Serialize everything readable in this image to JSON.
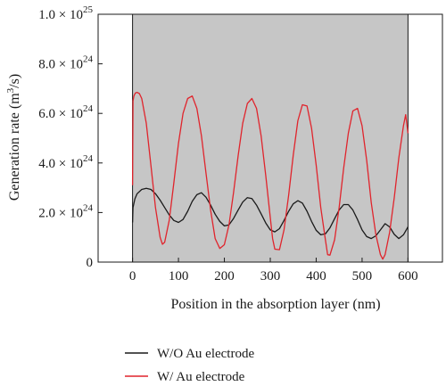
{
  "chart_data": {
    "type": "line",
    "xlabel": "Position in the absorption layer (nm)",
    "ylabel_prefix": "Generation rate (m",
    "ylabel_sup": "3",
    "ylabel_suffix": "/s)",
    "xlim": [
      -75,
      675
    ],
    "ylim": [
      0,
      1e+25
    ],
    "shaded_region": [
      0,
      600
    ],
    "x_ticks": [
      {
        "value": 0,
        "label": "0"
      },
      {
        "value": 100,
        "label": "100"
      },
      {
        "value": 200,
        "label": "200"
      },
      {
        "value": 300,
        "label": "300"
      },
      {
        "value": 400,
        "label": "400"
      },
      {
        "value": 500,
        "label": "500"
      },
      {
        "value": 600,
        "label": "600"
      }
    ],
    "y_ticks": [
      {
        "value": 0,
        "mantissa": "0",
        "exp": ""
      },
      {
        "value": 2e+24,
        "mantissa": "2.0 × 10",
        "exp": "24"
      },
      {
        "value": 4e+24,
        "mantissa": "4.0 × 10",
        "exp": "24"
      },
      {
        "value": 6e+24,
        "mantissa": "6.0 × 10",
        "exp": "24"
      },
      {
        "value": 8e+24,
        "mantissa": "8.0 × 10",
        "exp": "24"
      },
      {
        "value": 1e+25,
        "mantissa": "1.0 × 10",
        "exp": "25"
      }
    ],
    "grid": false,
    "legend_position": "bottom-left, below plot",
    "series": [
      {
        "name": "W/O Au electrode",
        "color": "#1a1a1a",
        "x": [
          0,
          1,
          5,
          10,
          20,
          30,
          40,
          50,
          60,
          70,
          80,
          90,
          100,
          110,
          120,
          130,
          140,
          150,
          160,
          170,
          180,
          190,
          200,
          210,
          220,
          230,
          240,
          250,
          260,
          270,
          280,
          290,
          300,
          310,
          320,
          330,
          340,
          350,
          360,
          370,
          380,
          390,
          400,
          410,
          420,
          430,
          440,
          450,
          460,
          470,
          480,
          490,
          500,
          510,
          520,
          530,
          540,
          550,
          560,
          570,
          580,
          590,
          600
        ],
        "y": [
          1.6e+24,
          2.2e+24,
          2.55e+24,
          2.76e+24,
          2.93e+24,
          2.98e+24,
          2.93e+24,
          2.76e+24,
          2.5e+24,
          2.2e+24,
          1.9e+24,
          1.68e+24,
          1.6e+24,
          1.72e+24,
          2.05e+24,
          2.45e+24,
          2.72e+24,
          2.8e+24,
          2.62e+24,
          2.3e+24,
          1.93e+24,
          1.64e+24,
          1.46e+24,
          1.5e+24,
          1.76e+24,
          2.1e+24,
          2.42e+24,
          2.6e+24,
          2.56e+24,
          2.3e+24,
          1.95e+24,
          1.58e+24,
          1.3e+24,
          1.22e+24,
          1.35e+24,
          1.68e+24,
          2.05e+24,
          2.35e+24,
          2.48e+24,
          2.38e+24,
          2.05e+24,
          1.64e+24,
          1.28e+24,
          1.1e+24,
          1.14e+24,
          1.38e+24,
          1.75e+24,
          2.1e+24,
          2.32e+24,
          2.32e+24,
          2.1e+24,
          1.72e+24,
          1.3e+24,
          1.03e+24,
          9.5e+23,
          1.06e+24,
          1.3e+24,
          1.55e+24,
          1.42e+24,
          1.12e+24,
          9.5e+23,
          1.1e+24,
          1.42e+24
        ]
      },
      {
        "name": "W/ Au electrode",
        "color": "#e0242c",
        "x": [
          0,
          1,
          3,
          6,
          10,
          15,
          20,
          30,
          40,
          50,
          60,
          65,
          70,
          80,
          90,
          100,
          110,
          120,
          130,
          140,
          150,
          160,
          170,
          180,
          190,
          200,
          210,
          220,
          230,
          240,
          250,
          260,
          270,
          280,
          290,
          300,
          305,
          310,
          320,
          330,
          340,
          350,
          360,
          370,
          380,
          390,
          400,
          410,
          420,
          425,
          430,
          440,
          450,
          460,
          470,
          480,
          490,
          500,
          510,
          520,
          530,
          540,
          545,
          550,
          560,
          570,
          580,
          590,
          595,
          600
        ],
        "y": [
          3.1e+24,
          6.5e+24,
          6.7e+24,
          6.82e+24,
          6.85e+24,
          6.8e+24,
          6.6e+24,
          5.6e+24,
          3.9e+24,
          2.2e+24,
          1e+24,
          7.2e+23,
          8e+23,
          1.7e+24,
          3.2e+24,
          4.8e+24,
          6e+24,
          6.6e+24,
          6.7e+24,
          6.2e+24,
          5.1e+24,
          3.6e+24,
          2.1e+24,
          9.5e+23,
          5.5e+23,
          7e+23,
          1.5e+24,
          2.8e+24,
          4.3e+24,
          5.6e+24,
          6.4e+24,
          6.6e+24,
          6.2e+24,
          5.1e+24,
          3.5e+24,
          1.8e+24,
          9.5e+23,
          5.2e+23,
          5e+23,
          1.3e+24,
          2.7e+24,
          4.3e+24,
          5.7e+24,
          6.35e+24,
          6.3e+24,
          5.4e+24,
          3.9e+24,
          2.2e+24,
          9e+23,
          3e+23,
          2.8e+23,
          9e+23,
          2.2e+24,
          3.8e+24,
          5.2e+24,
          6.1e+24,
          6.2e+24,
          5.5e+24,
          4.1e+24,
          2.4e+24,
          1.1e+24,
          3e+23,
          1.2e+23,
          3e+23,
          1.2e+24,
          2.6e+24,
          4.2e+24,
          5.5e+24,
          5.95e+24,
          5.2e+24
        ]
      }
    ]
  }
}
